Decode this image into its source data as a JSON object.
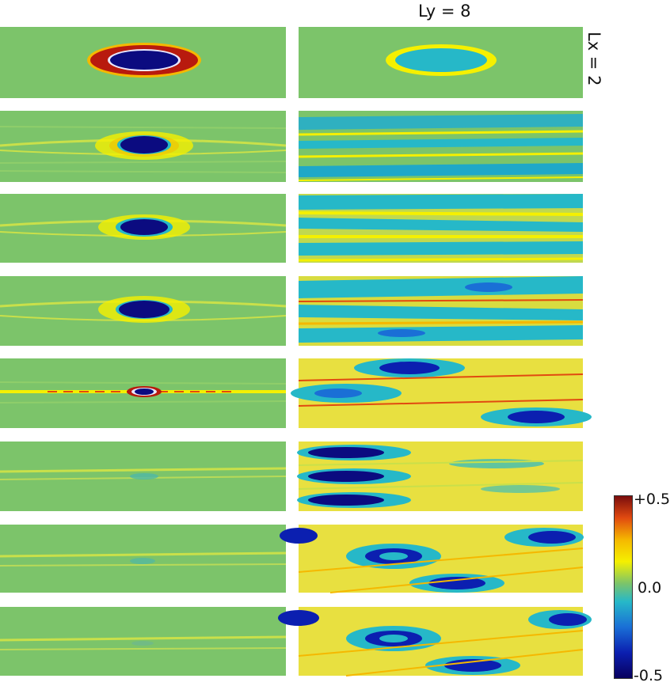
{
  "column_title": "Ly = 8",
  "row_title": "Lx = 2",
  "colorbar": {
    "max_label": "+0.5",
    "mid_label": "0.0",
    "min_label": "-0.5",
    "colors": [
      "#08005e",
      "#0b1fb0",
      "#1a6fd6",
      "#26b8c8",
      "#7cc46a",
      "#f5f000",
      "#f5b800",
      "#e14a10",
      "#7a0d0d"
    ]
  },
  "panels": {
    "rows": 8,
    "columns": 2
  }
}
